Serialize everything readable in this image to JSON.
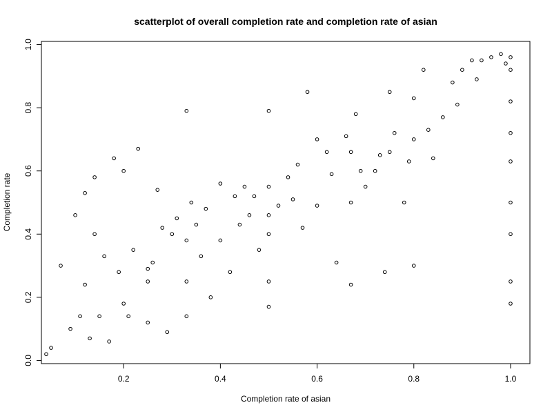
{
  "chart_data": {
    "type": "scatter",
    "title": "scatterplot of overall completion rate and completion rate of asian",
    "xlabel": "Completion rate of asian",
    "ylabel": "Completion rate",
    "xlim": [
      0.03,
      1.04
    ],
    "ylim": [
      -0.01,
      1.01
    ],
    "xticks": [
      0.2,
      0.4,
      0.6,
      0.8,
      1.0
    ],
    "xtick_labels": [
      "0.2",
      "0.4",
      "0.6",
      "0.8",
      "1.0"
    ],
    "yticks": [
      0.0,
      0.2,
      0.4,
      0.6,
      0.8,
      1.0
    ],
    "ytick_labels": [
      "0.0",
      "0.2",
      "0.4",
      "0.6",
      "0.8",
      "1.0"
    ],
    "grid": false,
    "marker": "open-circle",
    "colors": {
      "points": "#000000",
      "axes": "#000000",
      "background": "#ffffff"
    },
    "x": [
      0.04,
      0.05,
      0.07,
      0.09,
      0.1,
      0.11,
      0.12,
      0.13,
      0.14,
      0.15,
      0.17,
      0.18,
      0.2,
      0.21,
      0.23,
      0.25,
      0.25,
      0.27,
      0.29,
      0.3,
      0.31,
      0.33,
      0.33,
      0.33,
      0.34,
      0.36,
      0.38,
      0.4,
      0.42,
      0.44,
      0.46,
      0.48,
      0.5,
      0.5,
      0.5,
      0.5,
      0.5,
      0.52,
      0.54,
      0.56,
      0.58,
      0.6,
      0.62,
      0.64,
      0.66,
      0.67,
      0.67,
      0.68,
      0.7,
      0.72,
      0.74,
      0.75,
      0.75,
      0.76,
      0.78,
      0.8,
      0.8,
      0.82,
      0.84,
      0.86,
      0.88,
      0.9,
      0.92,
      0.94,
      0.96,
      0.98,
      1.0,
      1.0,
      1.0,
      1.0,
      1.0,
      1.0,
      1.0,
      1.0,
      1.0,
      0.12,
      0.16,
      0.22,
      0.28,
      0.35,
      0.45,
      0.55,
      0.63,
      0.73,
      0.83,
      0.93,
      0.19,
      0.26,
      0.37,
      0.47,
      0.57,
      0.69,
      0.79,
      0.89,
      0.99,
      0.33,
      0.5,
      0.67,
      0.25,
      0.2,
      0.4,
      0.6,
      0.8,
      0.14,
      0.43
    ],
    "y": [
      0.02,
      0.04,
      0.3,
      0.1,
      0.46,
      0.14,
      0.53,
      0.07,
      0.58,
      0.14,
      0.06,
      0.64,
      0.18,
      0.14,
      0.67,
      0.25,
      0.12,
      0.54,
      0.09,
      0.4,
      0.45,
      0.79,
      0.14,
      0.25,
      0.5,
      0.33,
      0.2,
      0.38,
      0.28,
      0.43,
      0.46,
      0.35,
      0.17,
      0.25,
      0.4,
      0.55,
      0.79,
      0.49,
      0.58,
      0.62,
      0.85,
      0.49,
      0.66,
      0.31,
      0.71,
      0.24,
      0.5,
      0.78,
      0.55,
      0.6,
      0.28,
      0.66,
      0.85,
      0.72,
      0.5,
      0.3,
      0.7,
      0.92,
      0.64,
      0.77,
      0.88,
      0.92,
      0.95,
      0.95,
      0.96,
      0.97,
      0.18,
      0.25,
      0.4,
      0.5,
      0.63,
      0.72,
      0.82,
      0.92,
      0.96,
      0.24,
      0.33,
      0.35,
      0.42,
      0.43,
      0.55,
      0.51,
      0.59,
      0.65,
      0.73,
      0.89,
      0.28,
      0.31,
      0.48,
      0.52,
      0.42,
      0.6,
      0.63,
      0.81,
      0.94,
      0.38,
      0.46,
      0.66,
      0.29,
      0.6,
      0.56,
      0.7,
      0.83,
      0.4,
      0.52
    ]
  }
}
